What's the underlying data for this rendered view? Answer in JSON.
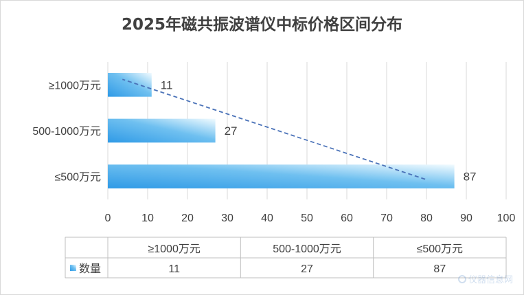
{
  "chart_data": {
    "type": "bar",
    "orientation": "horizontal",
    "title": "2025年磁共振波谱仪中标价格区间分布",
    "categories": [
      "≤500万元",
      "500-1000万元",
      "≥1000万元"
    ],
    "series": [
      {
        "name": "数量",
        "values": [
          87,
          27,
          11
        ]
      }
    ],
    "xlim": [
      0,
      100
    ],
    "x_ticks": [
      0,
      10,
      20,
      30,
      40,
      50,
      60,
      70,
      80,
      90,
      100
    ],
    "grid": "vertical",
    "trendline": "linear dashed",
    "data_table": true,
    "colors": {
      "bar": "#2f9ae6",
      "bar_light": "#d6eefc",
      "trend": "#4a72b8",
      "grid": "#d9d9d9"
    }
  },
  "watermark": "仪器信息网"
}
